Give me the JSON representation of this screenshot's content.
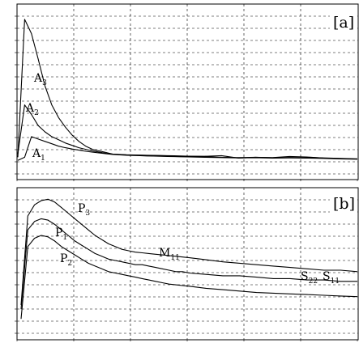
{
  "chart_data": [
    {
      "type": "line",
      "panel_label": "[a]",
      "grid": true,
      "tick_labels_legible": false,
      "x": [
        0,
        2,
        4,
        6,
        8,
        10,
        12,
        14,
        16,
        18,
        20,
        22,
        24,
        26,
        28,
        30,
        32,
        34,
        36,
        38,
        40,
        42,
        44,
        46,
        48,
        50,
        55,
        60,
        65,
        70,
        75,
        80,
        85,
        90,
        95,
        100
      ],
      "ylim": [
        0,
        1
      ],
      "series": [
        {
          "label": "A",
          "label_sub": "3",
          "values": [
            0.1,
            0.97,
            0.88,
            0.72,
            0.55,
            0.43,
            0.35,
            0.29,
            0.24,
            0.2,
            0.17,
            0.15,
            0.14,
            0.13,
            0.12,
            0.118,
            0.116,
            0.115,
            0.114,
            0.113,
            0.112,
            0.111,
            0.11,
            0.109,
            0.108,
            0.107,
            0.106,
            0.11,
            0.095,
            0.1,
            0.098,
            0.105,
            0.102,
            0.095,
            0.092,
            0.09
          ]
        },
        {
          "label": "A",
          "label_sub": "2",
          "values": [
            0.12,
            0.43,
            0.37,
            0.3,
            0.26,
            0.23,
            0.21,
            0.19,
            0.175,
            0.16,
            0.15,
            0.14,
            0.132,
            0.125,
            0.12,
            0.117,
            0.115,
            0.113,
            0.112,
            0.111,
            0.11,
            0.109,
            0.108,
            0.107,
            0.106,
            0.105,
            0.104,
            0.1,
            0.098,
            0.1,
            0.097,
            0.102,
            0.1,
            0.096,
            0.093,
            0.09
          ]
        },
        {
          "label": "A",
          "label_sub": "1",
          "values": [
            0.08,
            0.1,
            0.23,
            0.215,
            0.2,
            0.185,
            0.17,
            0.16,
            0.152,
            0.145,
            0.138,
            0.132,
            0.127,
            0.122,
            0.118,
            0.115,
            0.113,
            0.111,
            0.11,
            0.108,
            0.107,
            0.106,
            0.105,
            0.104,
            0.103,
            0.102,
            0.1,
            0.098,
            0.096,
            0.097,
            0.095,
            0.096,
            0.095,
            0.093,
            0.09,
            0.088
          ]
        }
      ]
    },
    {
      "type": "line",
      "panel_label": "[b]",
      "grid": true,
      "tick_labels_legible": false,
      "x": [
        0,
        2,
        4,
        6,
        8,
        10,
        12,
        14,
        16,
        18,
        20,
        22,
        24,
        26,
        28,
        30,
        32,
        34,
        36,
        38,
        40,
        42,
        44,
        46,
        48,
        50,
        55,
        60,
        65,
        70,
        75,
        80,
        85,
        90,
        95,
        100
      ],
      "ylim": [
        0,
        1
      ],
      "series": [
        {
          "label": "P",
          "label_sub": "3",
          "values": [
            0.18,
            0.82,
            0.9,
            0.93,
            0.94,
            0.92,
            0.88,
            0.84,
            0.8,
            0.76,
            0.72,
            0.68,
            0.65,
            0.62,
            0.6,
            0.58,
            0.57,
            0.56,
            0.555,
            0.55,
            0.545,
            0.54,
            0.535,
            0.53,
            0.525,
            0.52,
            0.505,
            0.49,
            0.48,
            0.47,
            0.46,
            0.45,
            0.44,
            0.43,
            0.43,
            0.42
          ]
        },
        {
          "label": "P",
          "label_sub": "1",
          "values": [
            0.15,
            0.72,
            0.78,
            0.8,
            0.79,
            0.76,
            0.72,
            0.68,
            0.64,
            0.61,
            0.58,
            0.55,
            0.53,
            0.51,
            0.5,
            0.49,
            0.48,
            0.47,
            0.47,
            0.46,
            0.45,
            0.44,
            0.43,
            0.42,
            0.42,
            0.41,
            0.4,
            0.39,
            0.39,
            0.38,
            0.37,
            0.37,
            0.36,
            0.36,
            0.35,
            0.35
          ]
        },
        {
          "label": "P",
          "label_sub": "2",
          "values": [
            0.08,
            0.6,
            0.66,
            0.68,
            0.67,
            0.64,
            0.6,
            0.57,
            0.54,
            0.51,
            0.48,
            0.46,
            0.44,
            0.42,
            0.41,
            0.4,
            0.39,
            0.38,
            0.37,
            0.36,
            0.35,
            0.34,
            0.33,
            0.325,
            0.32,
            0.315,
            0.3,
            0.29,
            0.28,
            0.27,
            0.265,
            0.26,
            0.255,
            0.25,
            0.245,
            0.24
          ]
        }
      ],
      "annotations": [
        {
          "label": "M",
          "label_sub": "11"
        },
        {
          "label": "S",
          "label_sub": "22"
        },
        {
          "label": "S",
          "label_sub": "11"
        }
      ]
    }
  ]
}
